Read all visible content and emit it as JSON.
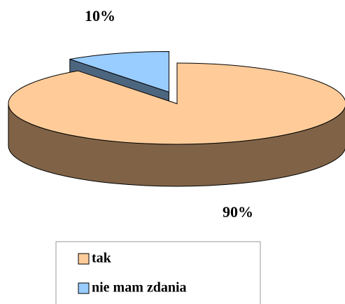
{
  "chart_data": {
    "type": "pie",
    "categories": [
      "tak",
      "nie mam zdania"
    ],
    "values": [
      90,
      10
    ],
    "value_labels": [
      "90%",
      "10%"
    ],
    "colors": [
      "#ffcc99",
      "#99ccff"
    ],
    "side_colors": [
      "#806347",
      "#4d6680"
    ]
  }
}
